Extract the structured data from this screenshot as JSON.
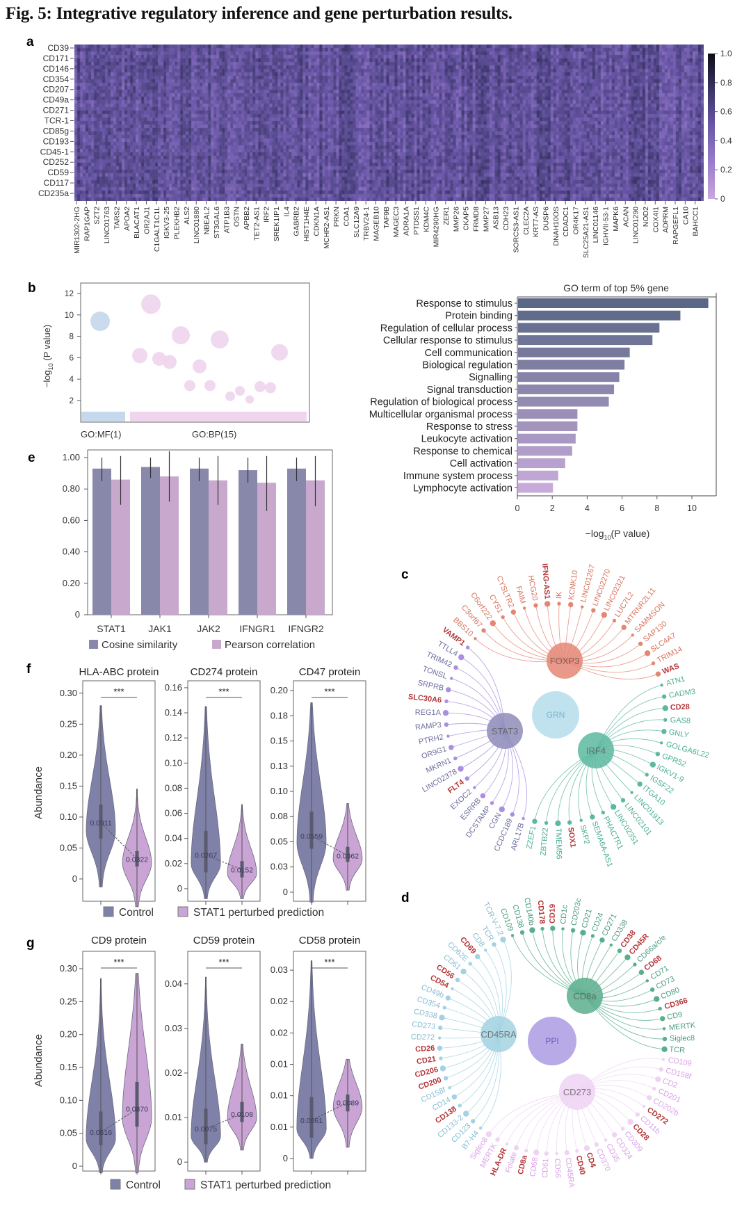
{
  "title": "Fig. 5: Integrative regulatory inference and gene perturbation results.",
  "panel_labels": {
    "a": "a",
    "b": "b",
    "c": "c",
    "d": "d",
    "e": "e",
    "f": "f",
    "g": "g"
  },
  "violin_legend": [
    "Control",
    "STAT1 perturbed prediction"
  ],
  "violin_colors": {
    "control": "#8081a8",
    "perturbed": "#c9a4d4"
  },
  "chart_data": [
    {
      "type": "heatmap",
      "rows": [
        "CD39",
        "CD171",
        "CD146",
        "CD354",
        "CD207",
        "CD49a",
        "CD271",
        "TCR-1",
        "CD85g",
        "CD193",
        "CD45-1",
        "CD252",
        "CD59",
        "CD117",
        "CD235a"
      ],
      "columns": [
        "MIR1302-2HG",
        "RAP1GAP",
        "SZT2",
        "LINC01763",
        "TARS2",
        "APOA2",
        "BLACAT1",
        "OR2AJ1",
        "C1GALT1C1L",
        "IGKV3-25",
        "PLEKHB2",
        "ALS2",
        "LINC01880",
        "NBEAL2",
        "ST3GAL6",
        "ATP1B3",
        "OSTN",
        "APBB2",
        "TET2-AS1",
        "IRF2",
        "SREK1IP1",
        "IL4",
        "GABRB2",
        "HIST1H4E",
        "CDKN1A",
        "MCHR2-AS1",
        "PRKN",
        "COA1",
        "SLC12A9",
        "TRBV24-1",
        "MAGEB10",
        "TAF9B",
        "MAGEC3",
        "ADRA1A",
        "PTDSS1",
        "KDM4C",
        "MIR4290HG",
        "ZER1",
        "MMP26",
        "CKAP5",
        "FRMD8",
        "MMP27",
        "ASB13",
        "CDH23",
        "SORCS3-AS1",
        "CLEC2A",
        "KRT7-AS",
        "DUSP6",
        "DNAH10OS",
        "CDADC1",
        "OR4K17",
        "SLC25A21-AS1",
        "LINC01146",
        "IGHVII-53-1",
        "MAPK6",
        "ACAN",
        "LINC01290",
        "NOD2",
        "COX4I1",
        "ADPRM",
        "RAPGEFL1",
        "CA10",
        "BAHCC1"
      ],
      "zlim": [
        0,
        1
      ],
      "colorbar_ticks": [
        "1.0",
        "0.8",
        "0.6",
        "0.4",
        "0.2",
        "0"
      ],
      "colormap": [
        "#cba6de",
        "#9a7ccb",
        "#6a58a8",
        "#3a3566",
        "#0e0e16"
      ]
    },
    {
      "type": "scatter",
      "ylabel": {
        "prefix": "−log",
        "sub": "10",
        "suffix": " (P value)"
      },
      "ylim": [
        0,
        12.9
      ],
      "yticks": [
        "2",
        "4",
        "6",
        "8",
        "10",
        "12"
      ],
      "groups": [
        {
          "label": "GO:MF(1)",
          "color": "#c6d8ec",
          "values": [
            9.4
          ]
        },
        {
          "label": "GO:BP(15)",
          "color": "#efd6ee",
          "values": [
            11.0,
            8.1,
            7.7,
            6.2,
            5.9,
            5.6,
            5.2,
            6.5,
            3.4,
            3.4,
            3.3,
            3.2,
            2.9,
            2.4,
            2.1
          ]
        }
      ]
    },
    {
      "type": "bar",
      "orientation": "horizontal",
      "title": "GO term of top 5% gene",
      "categories": [
        "Response to stimulus",
        "Protein binding",
        "Regulation of cellular process",
        "Cellular response to stimulus",
        "Cell communication",
        "Biological regulation",
        "Signalling",
        "Signal transduction",
        "Regulation of biological process",
        "Multicellular organismal process",
        "Response to stress",
        "Leukocyte activation",
        "Response to chemical",
        "Cell activation",
        "Immune system process",
        "Lymphocyte activation"
      ],
      "values": [
        10.9,
        9.3,
        8.1,
        7.7,
        6.4,
        6.1,
        5.8,
        5.5,
        5.2,
        3.4,
        3.4,
        3.3,
        3.1,
        2.7,
        2.3,
        2.0
      ],
      "xlim": [
        0,
        11.5
      ],
      "xticks": [
        "0",
        "2",
        "4",
        "6",
        "8",
        "10"
      ],
      "xlabel": {
        "prefix": "−log",
        "sub": "10",
        "suffix": "(P value)"
      },
      "color_range": [
        "#5a6786",
        "#c7aada"
      ]
    },
    {
      "type": "bar",
      "categories": [
        "STAT1",
        "JAK1",
        "JAK2",
        "IFNGR1",
        "IFNGR2"
      ],
      "ylim": [
        0,
        1.04
      ],
      "yticks": [
        "0",
        "0.20",
        "0.40",
        "0.60",
        "0.80",
        "1.00"
      ],
      "series": [
        {
          "name": "Cosine similarity",
          "color": "#8889aa",
          "values": [
            0.93,
            0.94,
            0.93,
            0.92,
            0.93
          ],
          "err_low": [
            0.85,
            0.87,
            0.85,
            0.84,
            0.85
          ],
          "err_high": [
            1.0,
            1.0,
            1.0,
            1.0,
            1.0
          ]
        },
        {
          "name": "Pearson correlation",
          "color": "#c8a9cd",
          "values": [
            0.86,
            0.88,
            0.855,
            0.84,
            0.855
          ],
          "err_low": [
            0.7,
            0.72,
            0.7,
            0.66,
            0.69
          ],
          "err_high": [
            1.01,
            1.04,
            1.01,
            1.01,
            1.01
          ]
        }
      ]
    },
    {
      "type": "violin",
      "title": "HLA-ABC protein",
      "ylabel": "Abundance",
      "significance": "***",
      "ylim": [
        -0.036,
        0.32
      ],
      "yticks": [
        0,
        0.05,
        0.1,
        0.15,
        0.2,
        0.25,
        0.3
      ],
      "ytick_labels": [
        "0",
        "0.05",
        "0.10",
        "0.15",
        "0.20",
        "0.25",
        "0.30"
      ],
      "control": {
        "median": "0.0911",
        "q1": 0.065,
        "q3": 0.12,
        "min": -0.013,
        "max": 0.28
      },
      "perturbed": {
        "median": "0.0322",
        "q1": 0.02,
        "q3": 0.045,
        "min": -0.045,
        "max": 0.145
      }
    },
    {
      "type": "violin",
      "title": "CD274 protein",
      "significance": "***",
      "ylim": [
        -0.01,
        0.1655
      ],
      "yticks": [
        0,
        0.02,
        0.04,
        0.06,
        0.08,
        0.1,
        0.12,
        0.14,
        0.16
      ],
      "ytick_labels": [
        "0",
        "0.02",
        "0.04",
        "0.06",
        "0.08",
        "0.10",
        "0.12",
        "0.14",
        "0.16"
      ],
      "control": {
        "median": "0.0267",
        "q1": 0.013,
        "q3": 0.046,
        "min": -0.008,
        "max": 0.145
      },
      "perturbed": {
        "median": "0.0152",
        "q1": 0.009,
        "q3": 0.022,
        "min": -0.008,
        "max": 0.067
      }
    },
    {
      "type": "violin",
      "title": "CD47 protein",
      "significance": "***",
      "ylim": [
        -0.009,
        0.2097
      ],
      "yticks": [
        0,
        0.025,
        0.05,
        0.075,
        0.1,
        0.125,
        0.15,
        0.175,
        0.2
      ],
      "ytick_labels": [
        "0",
        "0.03",
        "0.05",
        "0.08",
        "0.10",
        "0.13",
        "0.15",
        "0.18",
        "0.20"
      ],
      "control": {
        "median": "0.0559",
        "q1": 0.043,
        "q3": 0.08,
        "min": -0.01,
        "max": 0.188
      },
      "perturbed": {
        "median": "0.0362",
        "q1": 0.03,
        "q3": 0.045,
        "min": 0.002,
        "max": 0.088
      }
    },
    {
      "type": "violin",
      "title": "CD9 protein",
      "ylabel": "Abundance",
      "significance": "***",
      "ylim": [
        -0.0074,
        0.3264
      ],
      "yticks": [
        0,
        0.05,
        0.1,
        0.15,
        0.2,
        0.25,
        0.3
      ],
      "ytick_labels": [
        "0",
        "0.05",
        "0.10",
        "0.15",
        "0.20",
        "0.25",
        "0.30"
      ],
      "control": {
        "median": "0.0516",
        "q1": 0.032,
        "q3": 0.083,
        "min": -0.01,
        "max": 0.285
      },
      "perturbed": {
        "median": "0.0870",
        "q1": 0.06,
        "q3": 0.128,
        "min": -0.01,
        "max": 0.293
      }
    },
    {
      "type": "violin",
      "title": "CD59 protein",
      "significance": "***",
      "ylim": [
        -0.002,
        0.0473
      ],
      "yticks": [
        0,
        0.01,
        0.02,
        0.03,
        0.04
      ],
      "ytick_labels": [
        "0",
        "0.01",
        "0.02",
        "0.03",
        "0.04"
      ],
      "control": {
        "median": "0.0075",
        "q1": 0.004,
        "q3": 0.012,
        "min": 0,
        "max": 0.0415
      },
      "perturbed": {
        "median": "0.0108",
        "q1": 0.009,
        "q3": 0.0135,
        "min": 0.0027,
        "max": 0.0265
      }
    },
    {
      "type": "violin",
      "title": "CD58 protein",
      "significance": "***",
      "ylim": [
        -0.002,
        0.033
      ],
      "yticks": [
        0,
        0.005,
        0.01,
        0.015,
        0.02,
        0.025,
        0.03
      ],
      "ytick_labels": [
        "0",
        "0.01",
        "0.01",
        "0.01",
        "0.02",
        "0.02",
        "0.03"
      ],
      "control": {
        "median": "0.0061",
        "q1": 0.0033,
        "q3": 0.0098,
        "min": 0,
        "max": 0.0315
      },
      "perturbed": {
        "median": "0.0089",
        "q1": 0.0075,
        "q3": 0.0102,
        "min": 0.0018,
        "max": 0.0158
      }
    }
  ],
  "networks": [
    {
      "panel": "c",
      "center": {
        "label": "GRN",
        "color": "#c0e1ee",
        "text_color": "#7ab6cf"
      },
      "highlight_color": "#b5373a",
      "highlighted": [
        "IFNG-AS1",
        "WAS",
        "CD28",
        "SOX1",
        "FLT4",
        "SLC30A6",
        "VAMP1"
      ],
      "hubs": [
        {
          "label": "FOXP3",
          "color": "#e58674",
          "text_color": "#d9745e",
          "leaves": [
            "BBS10",
            "C3orf67",
            "C6orf222",
            "CYS1",
            "CYSLTR2",
            "FAIM",
            "HCG20",
            "IFNG-AS1",
            "IK",
            "KCNK10",
            "LINC01267",
            "LINC02270",
            "LINC02321",
            "LUC7L2",
            "MTRNR2L11",
            "SAMMSON",
            "SAP130",
            "SLC4A7",
            "TRIM14",
            "WAS"
          ]
        },
        {
          "label": "IRF4",
          "color": "#5cb9a0",
          "text_color": "#4aae94",
          "leaves": [
            "ATN1",
            "CADM3",
            "CD28",
            "GAS8",
            "GNLY",
            "GOLGA6L22",
            "GPR52",
            "IGKV1-9",
            "IGSF22",
            "ITGA10",
            "LINC01913",
            "LINC02101",
            "LINC02351",
            "PHACTR1",
            "SEMA6A-AS1",
            "SKP2",
            "SOX1",
            "TMEM56",
            "ZBTB22",
            "ZZEF1"
          ]
        },
        {
          "label": "STAT3",
          "color": "#8e8cb9",
          "text_color": "#6d6d9e",
          "link_color": "#a98ee2",
          "leaves": [
            "ARL17B",
            "CCDC189",
            "CGN",
            "DCSTAMP",
            "ESRRB",
            "EXOC2",
            "FLT4",
            "LINC02378",
            "MKRN1",
            "OR9G1",
            "PTRH2",
            "RAMP3",
            "REG1A",
            "SLC30A6",
            "SRPRB",
            "TONSL",
            "TRIM42",
            "TTLL4",
            "VAMP1"
          ]
        }
      ]
    },
    {
      "panel": "d",
      "center": {
        "label": "PPI",
        "color": "#b7aae7",
        "text_color": "#6a5db5"
      },
      "highlight_color": "#b5373a",
      "highlighted_by_hub": [
        [
          "CD178",
          "CD19",
          "CD38",
          "CD45R",
          "CD68",
          "CD366"
        ],
        [
          "CD272",
          "CD28",
          "CD4",
          "CD40",
          "CD8a",
          "HLA-DR"
        ],
        [
          "CD138",
          "CD200",
          "CD206",
          "CD21",
          "CD26",
          "CD54",
          "CD56",
          "CD69"
        ]
      ],
      "hubs": [
        {
          "label": "CD8a",
          "color": "#5aae8e",
          "text_color": "#4a9c7f",
          "leaves": [
            "CD109",
            "CD138",
            "CD140b",
            "CD178",
            "CD19",
            "CD1c",
            "CD203c",
            "CD21",
            "CD24",
            "CD271",
            "CD338",
            "CD38",
            "CD45R",
            "CD66a/c/e",
            "CD68",
            "CD71",
            "CD73",
            "CD80",
            "CD366",
            "CD9",
            "MERTK",
            "Siglec8",
            "TCR"
          ]
        },
        {
          "label": "CD273",
          "color": "#efd3f3",
          "text_color": "#d9a0e8",
          "leaves": [
            "CD109",
            "CD158f",
            "CD2",
            "CD201",
            "CD202b",
            "CD272",
            "CD11b",
            "CD28",
            "CD309",
            "CD324",
            "CD35",
            "CD370",
            "CD4",
            "CD40",
            "CD45RA",
            "CD56",
            "CD61",
            "CD68",
            "CD8a",
            "Folate",
            "HLA-DR",
            "MERTK",
            "Siglec8"
          ]
        },
        {
          "label": "CD45RA",
          "color": "#a3d2e2",
          "text_color": "#86bcd1",
          "leaves": [
            "B7-H4",
            "CD123",
            "CD133-2",
            "CD138",
            "CD14",
            "CD158f",
            "CD200",
            "CD206",
            "CD21",
            "CD26",
            "CD272",
            "CD273",
            "CD338",
            "CD354",
            "CD49b",
            "CD54",
            "CD56",
            "CD61",
            "CD62E",
            "CD69",
            "CD8",
            "TCR",
            "TCR-V-7.2"
          ]
        }
      ]
    }
  ]
}
